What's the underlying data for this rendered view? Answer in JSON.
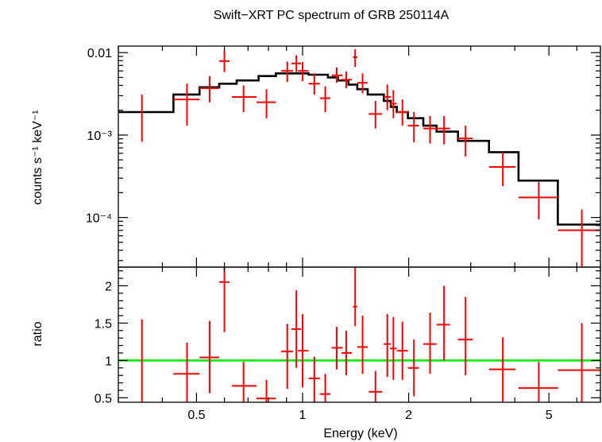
{
  "chart_data": [
    {
      "type": "scatter",
      "panel": "spectrum",
      "title": "Swift−XRT PC spectrum of GRB 250114A",
      "ylabel": "counts s⁻¹ keV⁻¹",
      "xscale": "log",
      "yscale": "log",
      "xlim": [
        0.3,
        7.0
      ],
      "ylim": [
        2.5e-05,
        0.012
      ],
      "y_ticks": [
        {
          "value": 0.01,
          "label": "0.01"
        },
        {
          "value": 0.001,
          "label": "10⁻³"
        },
        {
          "value": 0.0001,
          "label": "10⁻⁴"
        }
      ],
      "data_color": "#ff0000",
      "model_color": "#000000",
      "data": [
        {
          "x": 0.35,
          "xlo": 0.35,
          "xhi": 0.35,
          "y": 0.0019,
          "ylo": 0.00083,
          "yhi": 0.0031
        },
        {
          "x": 0.47,
          "xlo": 0.43,
          "xhi": 0.51,
          "y": 0.0027,
          "ylo": 0.0013,
          "yhi": 0.0042
        },
        {
          "x": 0.545,
          "xlo": 0.51,
          "xhi": 0.58,
          "y": 0.0037,
          "ylo": 0.0025,
          "yhi": 0.0052
        },
        {
          "x": 0.6,
          "xlo": 0.58,
          "xhi": 0.62,
          "y": 0.0079,
          "ylo": 0.0058,
          "yhi": 0.0106
        },
        {
          "x": 0.68,
          "xlo": 0.63,
          "xhi": 0.74,
          "y": 0.0029,
          "ylo": 0.0019,
          "yhi": 0.004
        },
        {
          "x": 0.79,
          "xlo": 0.74,
          "xhi": 0.84,
          "y": 0.0025,
          "ylo": 0.0016,
          "yhi": 0.0036
        },
        {
          "x": 0.905,
          "xlo": 0.87,
          "xhi": 0.94,
          "y": 0.006,
          "ylo": 0.0044,
          "yhi": 0.0078
        },
        {
          "x": 0.96,
          "xlo": 0.93,
          "xhi": 0.99,
          "y": 0.0074,
          "ylo": 0.0058,
          "yhi": 0.0093
        },
        {
          "x": 1.0,
          "xlo": 0.97,
          "xhi": 1.04,
          "y": 0.006,
          "ylo": 0.0045,
          "yhi": 0.0077
        },
        {
          "x": 1.08,
          "xlo": 1.04,
          "xhi": 1.12,
          "y": 0.0042,
          "ylo": 0.0031,
          "yhi": 0.0056
        },
        {
          "x": 1.16,
          "xlo": 1.12,
          "xhi": 1.2,
          "y": 0.0028,
          "ylo": 0.0019,
          "yhi": 0.0039
        },
        {
          "x": 1.25,
          "xlo": 1.21,
          "xhi": 1.3,
          "y": 0.0053,
          "ylo": 0.0043,
          "yhi": 0.0066
        },
        {
          "x": 1.33,
          "xlo": 1.29,
          "xhi": 1.38,
          "y": 0.0047,
          "ylo": 0.0037,
          "yhi": 0.0059
        },
        {
          "x": 1.41,
          "xlo": 1.39,
          "xhi": 1.43,
          "y": 0.0088,
          "ylo": 0.0067,
          "yhi": 0.011
        },
        {
          "x": 1.48,
          "xlo": 1.43,
          "xhi": 1.53,
          "y": 0.0043,
          "ylo": 0.0032,
          "yhi": 0.0056
        },
        {
          "x": 1.61,
          "xlo": 1.54,
          "xhi": 1.68,
          "y": 0.0018,
          "ylo": 0.0012,
          "yhi": 0.0026
        },
        {
          "x": 1.74,
          "xlo": 1.7,
          "xhi": 1.78,
          "y": 0.0029,
          "ylo": 0.002,
          "yhi": 0.0041
        },
        {
          "x": 1.81,
          "xlo": 1.77,
          "xhi": 1.85,
          "y": 0.0024,
          "ylo": 0.0016,
          "yhi": 0.0035
        },
        {
          "x": 1.92,
          "xlo": 1.85,
          "xhi": 1.99,
          "y": 0.0019,
          "ylo": 0.0013,
          "yhi": 0.0027
        },
        {
          "x": 2.07,
          "xlo": 1.99,
          "xhi": 2.14,
          "y": 0.0013,
          "ylo": 0.00082,
          "yhi": 0.0019
        },
        {
          "x": 2.3,
          "xlo": 2.2,
          "xhi": 2.4,
          "y": 0.0012,
          "ylo": 0.00079,
          "yhi": 0.0017
        },
        {
          "x": 2.52,
          "xlo": 2.4,
          "xhi": 2.62,
          "y": 0.0012,
          "ylo": 0.00077,
          "yhi": 0.0017
        },
        {
          "x": 2.9,
          "xlo": 2.76,
          "xhi": 3.04,
          "y": 0.00091,
          "ylo": 0.00055,
          "yhi": 0.0013
        },
        {
          "x": 3.7,
          "xlo": 3.38,
          "xhi": 4.02,
          "y": 0.00041,
          "ylo": 0.00024,
          "yhi": 0.00062
        },
        {
          "x": 4.68,
          "xlo": 4.1,
          "xhi": 5.3,
          "y": 0.000175,
          "ylo": 9.5e-05,
          "yhi": 0.00027
        },
        {
          "x": 6.2,
          "xlo": 5.3,
          "xhi": 7.0,
          "y": 7e-05,
          "ylo": 2.5e-05,
          "yhi": 0.000125
        }
      ],
      "model_bins": [
        {
          "xlo": 0.3,
          "xhi": 0.43,
          "y": 0.0019
        },
        {
          "xlo": 0.43,
          "xhi": 0.51,
          "y": 0.0031
        },
        {
          "xlo": 0.51,
          "xhi": 0.58,
          "y": 0.0038
        },
        {
          "xlo": 0.58,
          "xhi": 0.65,
          "y": 0.0042
        },
        {
          "xlo": 0.65,
          "xhi": 0.75,
          "y": 0.0046
        },
        {
          "xlo": 0.75,
          "xhi": 0.84,
          "y": 0.0052
        },
        {
          "xlo": 0.84,
          "xhi": 1.04,
          "y": 0.0056
        },
        {
          "xlo": 1.04,
          "xhi": 1.18,
          "y": 0.0054
        },
        {
          "xlo": 1.18,
          "xhi": 1.26,
          "y": 0.005
        },
        {
          "xlo": 1.26,
          "xhi": 1.35,
          "y": 0.0046
        },
        {
          "xlo": 1.35,
          "xhi": 1.43,
          "y": 0.0041
        },
        {
          "xlo": 1.43,
          "xhi": 1.53,
          "y": 0.0036
        },
        {
          "xlo": 1.53,
          "xhi": 1.7,
          "y": 0.0031
        },
        {
          "xlo": 1.7,
          "xhi": 1.78,
          "y": 0.0026
        },
        {
          "xlo": 1.78,
          "xhi": 1.85,
          "y": 0.0022
        },
        {
          "xlo": 1.85,
          "xhi": 1.99,
          "y": 0.0019
        },
        {
          "xlo": 1.99,
          "xhi": 2.2,
          "y": 0.0016
        },
        {
          "xlo": 2.2,
          "xhi": 2.4,
          "y": 0.0013
        },
        {
          "xlo": 2.4,
          "xhi": 2.76,
          "y": 0.0011
        },
        {
          "xlo": 2.76,
          "xhi": 3.38,
          "y": 0.00085
        },
        {
          "xlo": 3.38,
          "xhi": 4.1,
          "y": 0.00062
        },
        {
          "xlo": 4.1,
          "xhi": 5.3,
          "y": 0.00028
        },
        {
          "xlo": 5.3,
          "xhi": 7.0,
          "y": 8.2e-05
        }
      ]
    },
    {
      "type": "scatter",
      "panel": "ratio",
      "ylabel": "ratio",
      "xlabel": "Energy (keV)",
      "xscale": "log",
      "yscale": "linear",
      "xlim": [
        0.3,
        7.0
      ],
      "ylim": [
        0.44,
        2.25
      ],
      "x_ticks": [
        {
          "value": 0.5,
          "label": "0.5"
        },
        {
          "value": 1,
          "label": "1"
        },
        {
          "value": 2,
          "label": "2"
        },
        {
          "value": 5,
          "label": "5"
        }
      ],
      "y_ticks": [
        {
          "value": 0.5,
          "label": "0.5"
        },
        {
          "value": 1,
          "label": "1"
        },
        {
          "value": 1.5,
          "label": "1.5"
        },
        {
          "value": 2,
          "label": "2"
        }
      ],
      "reference_line": {
        "y": 1,
        "color": "#00ee00"
      },
      "data_color": "#ff0000",
      "data": [
        {
          "x": 0.35,
          "xlo": 0.35,
          "xhi": 0.35,
          "y": 1.0,
          "ylo": 0.44,
          "yhi": 1.55
        },
        {
          "x": 0.47,
          "xlo": 0.43,
          "xhi": 0.51,
          "y": 0.82,
          "ylo": 0.44,
          "yhi": 1.24
        },
        {
          "x": 0.545,
          "xlo": 0.51,
          "xhi": 0.58,
          "y": 1.04,
          "ylo": 0.56,
          "yhi": 1.53
        },
        {
          "x": 0.6,
          "xlo": 0.58,
          "xhi": 0.62,
          "y": 2.05,
          "ylo": 1.38,
          "yhi": 2.25
        },
        {
          "x": 0.68,
          "xlo": 0.63,
          "xhi": 0.74,
          "y": 0.66,
          "ylo": 0.44,
          "yhi": 0.98
        },
        {
          "x": 0.79,
          "xlo": 0.74,
          "xhi": 0.84,
          "y": 0.49,
          "ylo": 0.44,
          "yhi": 0.74
        },
        {
          "x": 0.905,
          "xlo": 0.87,
          "xhi": 0.94,
          "y": 1.12,
          "ylo": 0.62,
          "yhi": 1.49
        },
        {
          "x": 0.96,
          "xlo": 0.93,
          "xhi": 0.99,
          "y": 1.42,
          "ylo": 0.9,
          "yhi": 1.94
        },
        {
          "x": 1.0,
          "xlo": 0.97,
          "xhi": 1.04,
          "y": 1.13,
          "ylo": 0.64,
          "yhi": 1.62
        },
        {
          "x": 1.08,
          "xlo": 1.04,
          "xhi": 1.12,
          "y": 0.76,
          "ylo": 0.44,
          "yhi": 1.05
        },
        {
          "x": 1.16,
          "xlo": 1.12,
          "xhi": 1.2,
          "y": 0.55,
          "ylo": 0.44,
          "yhi": 0.82
        },
        {
          "x": 1.25,
          "xlo": 1.21,
          "xhi": 1.3,
          "y": 1.17,
          "ylo": 0.88,
          "yhi": 1.45
        },
        {
          "x": 1.33,
          "xlo": 1.29,
          "xhi": 1.38,
          "y": 1.1,
          "ylo": 0.8,
          "yhi": 1.4
        },
        {
          "x": 1.41,
          "xlo": 1.39,
          "xhi": 1.43,
          "y": 1.72,
          "ylo": 1.46,
          "yhi": 2.25
        },
        {
          "x": 1.48,
          "xlo": 1.43,
          "xhi": 1.53,
          "y": 1.18,
          "ylo": 0.82,
          "yhi": 1.6
        },
        {
          "x": 1.61,
          "xlo": 1.54,
          "xhi": 1.68,
          "y": 0.58,
          "ylo": 0.44,
          "yhi": 0.86
        },
        {
          "x": 1.74,
          "xlo": 1.7,
          "xhi": 1.78,
          "y": 1.22,
          "ylo": 0.78,
          "yhi": 1.62
        },
        {
          "x": 1.81,
          "xlo": 1.77,
          "xhi": 1.85,
          "y": 1.16,
          "ylo": 0.74,
          "yhi": 1.58
        },
        {
          "x": 1.92,
          "xlo": 1.85,
          "xhi": 1.99,
          "y": 1.13,
          "ylo": 0.74,
          "yhi": 1.52
        },
        {
          "x": 2.07,
          "xlo": 1.99,
          "xhi": 2.14,
          "y": 0.9,
          "ylo": 0.52,
          "yhi": 1.28
        },
        {
          "x": 2.3,
          "xlo": 2.2,
          "xhi": 2.4,
          "y": 1.22,
          "ylo": 0.82,
          "yhi": 1.64
        },
        {
          "x": 2.52,
          "xlo": 2.4,
          "xhi": 2.62,
          "y": 1.48,
          "ylo": 1.0,
          "yhi": 2.0
        },
        {
          "x": 2.9,
          "xlo": 2.76,
          "xhi": 3.04,
          "y": 1.28,
          "ylo": 0.8,
          "yhi": 1.85
        },
        {
          "x": 3.7,
          "xlo": 3.38,
          "xhi": 4.02,
          "y": 0.88,
          "ylo": 0.44,
          "yhi": 1.31
        },
        {
          "x": 4.68,
          "xlo": 4.1,
          "xhi": 5.3,
          "y": 0.63,
          "ylo": 0.44,
          "yhi": 0.98
        },
        {
          "x": 6.2,
          "xlo": 5.3,
          "xhi": 7.0,
          "y": 0.87,
          "ylo": 0.44,
          "yhi": 1.5
        }
      ]
    }
  ]
}
